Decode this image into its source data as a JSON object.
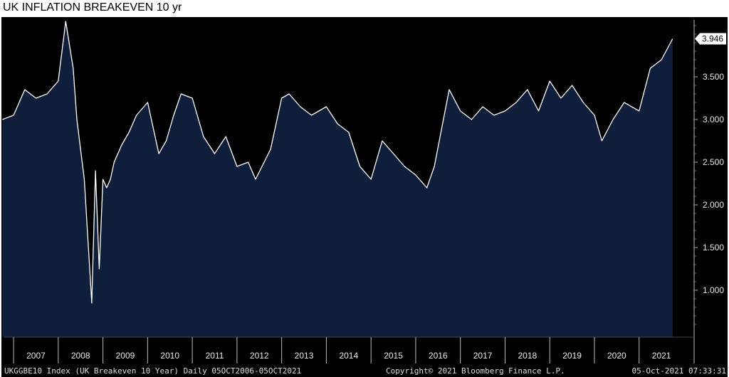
{
  "chart_data": {
    "type": "area",
    "title": "UK INFLATION BREAKEVEN 10 yr",
    "ylim": [
      0.45,
      4.2
    ],
    "y_ticks": [
      "1.000",
      "1.500",
      "2.000",
      "2.500",
      "3.000",
      "3.500"
    ],
    "x_ticks": [
      "2007",
      "2008",
      "2009",
      "2010",
      "2011",
      "2012",
      "2013",
      "2014",
      "2015",
      "2016",
      "2017",
      "2018",
      "2019",
      "2020",
      "2021"
    ],
    "last_value_label": "3.946",
    "grid": false,
    "legend": "none",
    "colors": {
      "background": "#000000",
      "area_fill": "#0f1e3a",
      "line": "#ffffff",
      "axis_text": "#e8e8e8"
    },
    "series": [
      {
        "x": [
          "2006-10",
          "2007-01",
          "2007-04",
          "2007-07",
          "2007-10",
          "2008-01",
          "2008-03",
          "2008-05",
          "2008-06",
          "2008-08",
          "2008-10",
          "2008-11",
          "2008-12",
          "2009-01",
          "2009-02",
          "2009-03",
          "2009-04",
          "2009-06",
          "2009-08",
          "2009-10",
          "2010-01",
          "2010-04",
          "2010-06",
          "2010-08",
          "2010-10",
          "2011-01",
          "2011-04",
          "2011-07",
          "2011-10",
          "2012-01",
          "2012-04",
          "2012-06",
          "2012-10",
          "2013-01",
          "2013-03",
          "2013-06",
          "2013-09",
          "2014-01",
          "2014-04",
          "2014-07",
          "2014-10",
          "2015-01",
          "2015-04",
          "2015-07",
          "2015-10",
          "2016-01",
          "2016-04",
          "2016-06",
          "2016-08",
          "2016-10",
          "2017-01",
          "2017-04",
          "2017-07",
          "2017-10",
          "2018-01",
          "2018-04",
          "2018-07",
          "2018-10",
          "2019-01",
          "2019-04",
          "2019-07",
          "2019-10",
          "2020-01",
          "2020-03",
          "2020-06",
          "2020-09",
          "2021-01",
          "2021-04",
          "2021-07",
          "2021-10"
        ],
        "values": [
          3.0,
          3.05,
          3.35,
          3.25,
          3.3,
          3.45,
          4.15,
          3.6,
          3.0,
          2.3,
          0.85,
          2.4,
          1.25,
          2.3,
          2.2,
          2.3,
          2.5,
          2.7,
          2.85,
          3.05,
          3.2,
          2.6,
          2.75,
          3.05,
          3.3,
          3.25,
          2.8,
          2.6,
          2.8,
          2.45,
          2.5,
          2.3,
          2.65,
          3.25,
          3.3,
          3.15,
          3.05,
          3.15,
          2.95,
          2.85,
          2.45,
          2.3,
          2.75,
          2.6,
          2.45,
          2.35,
          2.2,
          2.45,
          2.9,
          3.35,
          3.1,
          3.0,
          3.15,
          3.05,
          3.1,
          3.2,
          3.35,
          3.1,
          3.45,
          3.25,
          3.4,
          3.2,
          3.05,
          2.75,
          3.0,
          3.2,
          3.1,
          3.6,
          3.7,
          3.946
        ]
      }
    ]
  },
  "footer": {
    "left": "UKGGBE10 Index (UK Breakeven 10 Year) Daily 05OCT2006-05OCT2021",
    "mid": "Copyright© 2021 Bloomberg Finance L.P.",
    "right": "05-Oct-2021 07:33:31"
  }
}
